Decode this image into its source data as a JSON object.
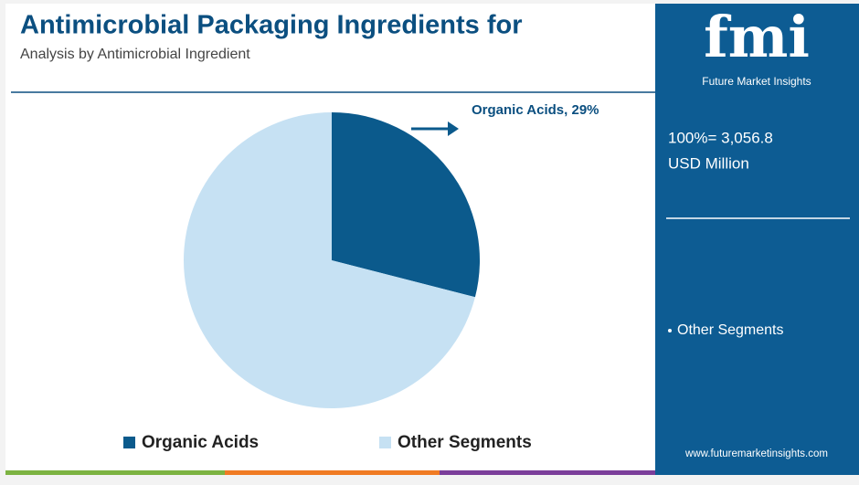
{
  "chart_data": {
    "type": "pie",
    "title": "Antimicrobial Packaging Ingredients for",
    "subtitle": "Analysis by Antimicrobial Ingredient",
    "categories": [
      "Organic Acids",
      "Other Segments"
    ],
    "values": [
      29,
      71
    ],
    "value_labels": [
      "Organic Acids, 29%",
      null
    ],
    "colors": [
      "#0b5a8c",
      "#c6e1f3"
    ],
    "legend": "bottom"
  },
  "sidebar": {
    "logo": "fmi",
    "brand": "Future Market Insights",
    "total": "100%= 3,056.8",
    "unit": "USD Million",
    "note": "Other Segments",
    "website": "www.futuremarketinsights.com"
  }
}
